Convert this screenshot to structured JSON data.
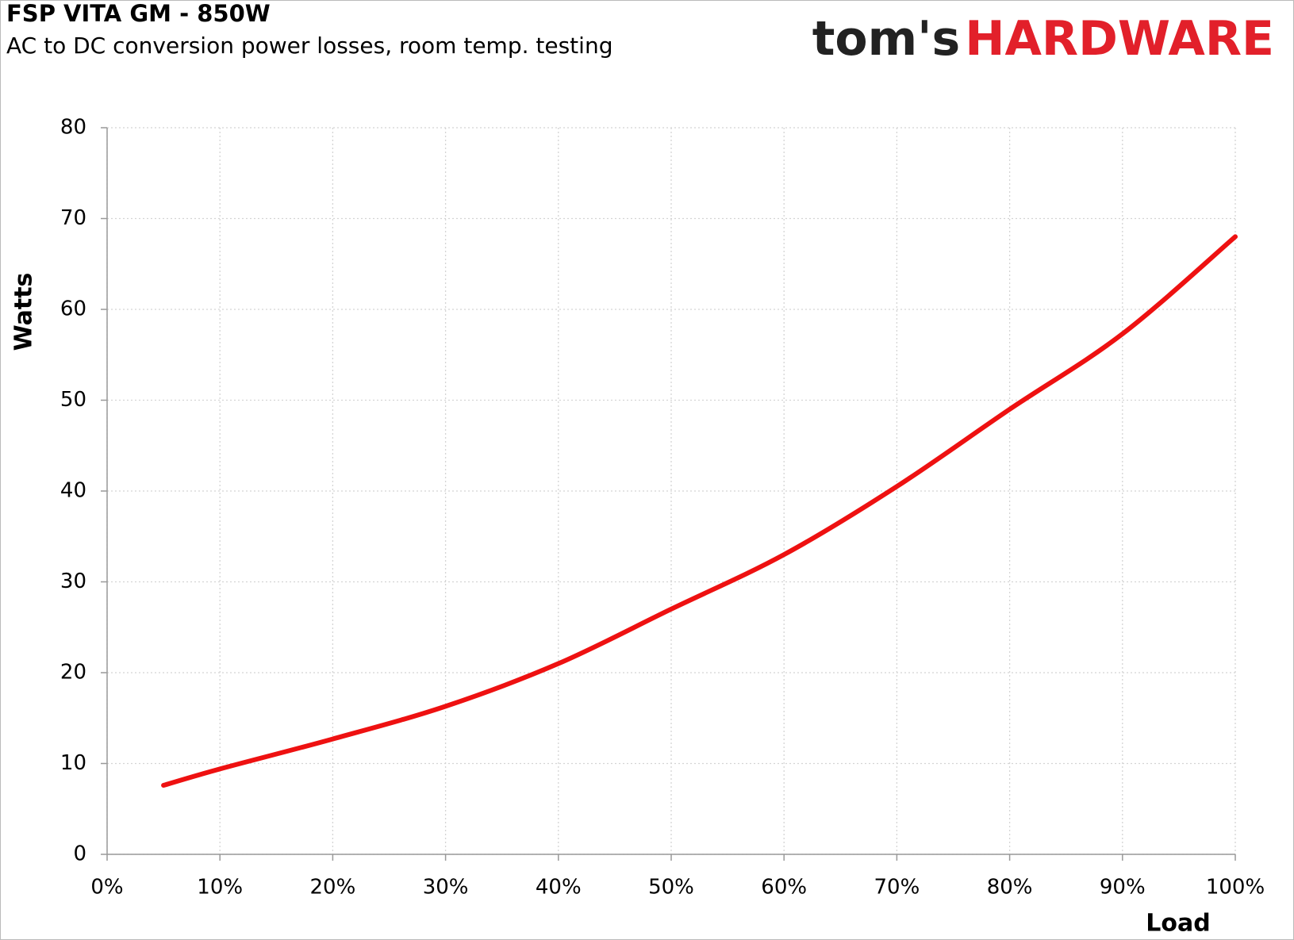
{
  "chart_data": {
    "type": "line",
    "title": "FSP VITA GM - 850W",
    "subtitle": "AC to DC conversion power losses, room temp. testing",
    "logo": {
      "left": "tom's",
      "right": "HARDWARE"
    },
    "xlabel": "Load",
    "ylabel": "Watts",
    "x": [
      5,
      10,
      20,
      30,
      40,
      50,
      60,
      70,
      80,
      90,
      100
    ],
    "series": [
      {
        "name": "FSP VITA GM - 850W",
        "color": "#ee1111",
        "values": [
          7.6,
          9.4,
          12.7,
          16.3,
          21,
          27,
          33,
          40.5,
          49,
          57.3,
          68
        ]
      }
    ],
    "xlim": [
      0,
      100
    ],
    "xticks": [
      {
        "value": 0,
        "label": "0%"
      },
      {
        "value": 10,
        "label": "10%"
      },
      {
        "value": 20,
        "label": "20%"
      },
      {
        "value": 30,
        "label": "30%"
      },
      {
        "value": 40,
        "label": "40%"
      },
      {
        "value": 50,
        "label": "50%"
      },
      {
        "value": 60,
        "label": "60%"
      },
      {
        "value": 70,
        "label": "70%"
      },
      {
        "value": 80,
        "label": "80%"
      },
      {
        "value": 90,
        "label": "90%"
      },
      {
        "value": 100,
        "label": "100%"
      }
    ],
    "ylim": [
      0,
      80
    ],
    "yticks": [
      0,
      10,
      20,
      30,
      40,
      50,
      60,
      70,
      80
    ],
    "grid": true
  }
}
